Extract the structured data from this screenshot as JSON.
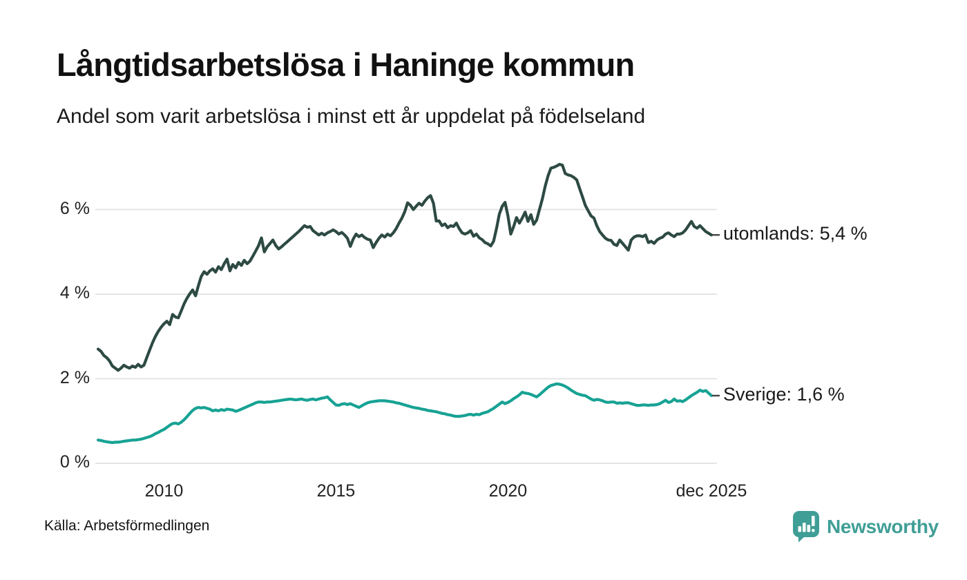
{
  "header": {
    "title": "Långtidsarbetslösa i Haninge kommun",
    "subtitle": "Andel som varit arbetslösa i minst ett år uppdelat på födelseland"
  },
  "chart_data": {
    "type": "line",
    "title": "Långtidsarbetslösa i Haninge kommun",
    "subtitle": "Andel som varit arbetslösa i minst ett år uppdelat på födelseland",
    "x_unit": "month",
    "x_start": "2008-02",
    "x_end": "2025-12",
    "ylim": [
      0,
      7.3
    ],
    "grid": "horizontal",
    "grid_color": "#e4e4e4",
    "y_ticks": [
      {
        "label": "0 %",
        "value": 0
      },
      {
        "label": "2 %",
        "value": 2
      },
      {
        "label": "4 %",
        "value": 4
      },
      {
        "label": "6 %",
        "value": 6
      }
    ],
    "x_ticks": [
      {
        "label": "2010",
        "t": 2010
      },
      {
        "label": "2015",
        "t": 2015
      },
      {
        "label": "2020",
        "t": 2020
      },
      {
        "label": "dec 2025",
        "t": 2025.917
      }
    ],
    "series": [
      {
        "name": "utomlands",
        "color": "#2d4a43",
        "end_label": "utomlands: 5,4 %",
        "end_value": "5,4 %",
        "values": [
          2.7,
          2.65,
          2.55,
          2.5,
          2.42,
          2.3,
          2.25,
          2.2,
          2.25,
          2.32,
          2.28,
          2.25,
          2.3,
          2.27,
          2.34,
          2.28,
          2.32,
          2.5,
          2.68,
          2.85,
          3.0,
          3.12,
          3.22,
          3.3,
          3.36,
          3.28,
          3.52,
          3.46,
          3.44,
          3.6,
          3.77,
          3.9,
          4.01,
          4.1,
          3.96,
          4.2,
          4.42,
          4.53,
          4.47,
          4.55,
          4.6,
          4.52,
          4.65,
          4.58,
          4.72,
          4.83,
          4.55,
          4.7,
          4.62,
          4.75,
          4.68,
          4.8,
          4.72,
          4.78,
          4.9,
          5.02,
          5.15,
          5.33,
          5.0,
          5.12,
          5.2,
          5.28,
          5.15,
          5.07,
          5.12,
          5.18,
          5.24,
          5.3,
          5.36,
          5.42,
          5.48,
          5.55,
          5.62,
          5.58,
          5.6,
          5.5,
          5.45,
          5.4,
          5.44,
          5.4,
          5.45,
          5.48,
          5.52,
          5.48,
          5.42,
          5.46,
          5.4,
          5.32,
          5.13,
          5.3,
          5.42,
          5.36,
          5.4,
          5.34,
          5.3,
          5.28,
          5.1,
          5.22,
          5.32,
          5.4,
          5.35,
          5.42,
          5.38,
          5.45,
          5.55,
          5.68,
          5.8,
          5.95,
          6.16,
          6.1,
          6.0,
          6.08,
          6.15,
          6.1,
          6.2,
          6.28,
          6.33,
          6.15,
          5.73,
          5.73,
          5.62,
          5.66,
          5.57,
          5.62,
          5.6,
          5.68,
          5.55,
          5.45,
          5.42,
          5.45,
          5.5,
          5.37,
          5.42,
          5.33,
          5.29,
          5.22,
          5.19,
          5.14,
          5.25,
          5.55,
          5.89,
          6.08,
          6.17,
          5.85,
          5.42,
          5.6,
          5.81,
          5.68,
          5.8,
          5.94,
          5.72,
          5.88,
          5.65,
          5.75,
          6.0,
          6.25,
          6.55,
          6.8,
          6.98,
          7.0,
          7.03,
          7.07,
          7.05,
          6.85,
          6.82,
          6.8,
          6.76,
          6.7,
          6.5,
          6.3,
          6.1,
          5.97,
          5.85,
          5.8,
          5.62,
          5.48,
          5.4,
          5.32,
          5.28,
          5.27,
          5.18,
          5.15,
          5.28,
          5.2,
          5.12,
          5.04,
          5.28,
          5.35,
          5.38,
          5.38,
          5.36,
          5.4,
          5.22,
          5.25,
          5.2,
          5.28,
          5.32,
          5.35,
          5.42,
          5.45,
          5.4,
          5.36,
          5.42,
          5.42,
          5.45,
          5.52,
          5.62,
          5.72,
          5.6,
          5.56,
          5.62,
          5.55,
          5.48,
          5.44,
          5.4
        ]
      },
      {
        "name": "Sverige",
        "color": "#17a294",
        "end_label": "Sverige: 1,6 %",
        "end_value": "1,6 %",
        "values": [
          0.55,
          0.54,
          0.52,
          0.51,
          0.5,
          0.49,
          0.5,
          0.5,
          0.51,
          0.52,
          0.53,
          0.54,
          0.55,
          0.55,
          0.56,
          0.57,
          0.59,
          0.61,
          0.63,
          0.66,
          0.7,
          0.73,
          0.77,
          0.8,
          0.85,
          0.9,
          0.94,
          0.95,
          0.93,
          0.97,
          1.03,
          1.1,
          1.18,
          1.25,
          1.3,
          1.32,
          1.31,
          1.32,
          1.3,
          1.28,
          1.24,
          1.26,
          1.24,
          1.27,
          1.25,
          1.28,
          1.27,
          1.26,
          1.23,
          1.25,
          1.28,
          1.31,
          1.34,
          1.37,
          1.4,
          1.43,
          1.45,
          1.45,
          1.44,
          1.45,
          1.45,
          1.46,
          1.47,
          1.48,
          1.49,
          1.5,
          1.51,
          1.52,
          1.51,
          1.5,
          1.51,
          1.52,
          1.5,
          1.49,
          1.51,
          1.52,
          1.5,
          1.52,
          1.54,
          1.55,
          1.57,
          1.5,
          1.44,
          1.38,
          1.37,
          1.4,
          1.41,
          1.39,
          1.41,
          1.38,
          1.35,
          1.32,
          1.36,
          1.4,
          1.43,
          1.45,
          1.46,
          1.47,
          1.48,
          1.48,
          1.48,
          1.47,
          1.46,
          1.45,
          1.43,
          1.42,
          1.4,
          1.38,
          1.36,
          1.34,
          1.32,
          1.31,
          1.3,
          1.28,
          1.27,
          1.25,
          1.24,
          1.23,
          1.22,
          1.2,
          1.18,
          1.17,
          1.15,
          1.14,
          1.12,
          1.11,
          1.11,
          1.12,
          1.13,
          1.15,
          1.16,
          1.14,
          1.16,
          1.15,
          1.18,
          1.2,
          1.22,
          1.26,
          1.3,
          1.35,
          1.4,
          1.45,
          1.41,
          1.44,
          1.48,
          1.53,
          1.57,
          1.62,
          1.68,
          1.66,
          1.65,
          1.63,
          1.6,
          1.57,
          1.62,
          1.68,
          1.74,
          1.8,
          1.84,
          1.86,
          1.88,
          1.87,
          1.85,
          1.82,
          1.78,
          1.73,
          1.69,
          1.65,
          1.63,
          1.61,
          1.6,
          1.56,
          1.52,
          1.49,
          1.51,
          1.5,
          1.48,
          1.45,
          1.44,
          1.45,
          1.45,
          1.42,
          1.43,
          1.42,
          1.43,
          1.43,
          1.41,
          1.39,
          1.37,
          1.37,
          1.38,
          1.38,
          1.37,
          1.38,
          1.38,
          1.39,
          1.41,
          1.45,
          1.49,
          1.44,
          1.46,
          1.52,
          1.47,
          1.48,
          1.46,
          1.5,
          1.55,
          1.6,
          1.64,
          1.68,
          1.73,
          1.7,
          1.72,
          1.66,
          1.6
        ]
      }
    ]
  },
  "footer": {
    "source": "Källa: Arbetsförmedlingen",
    "brand": "Newsworthy",
    "brand_color": "#3f9e96"
  }
}
